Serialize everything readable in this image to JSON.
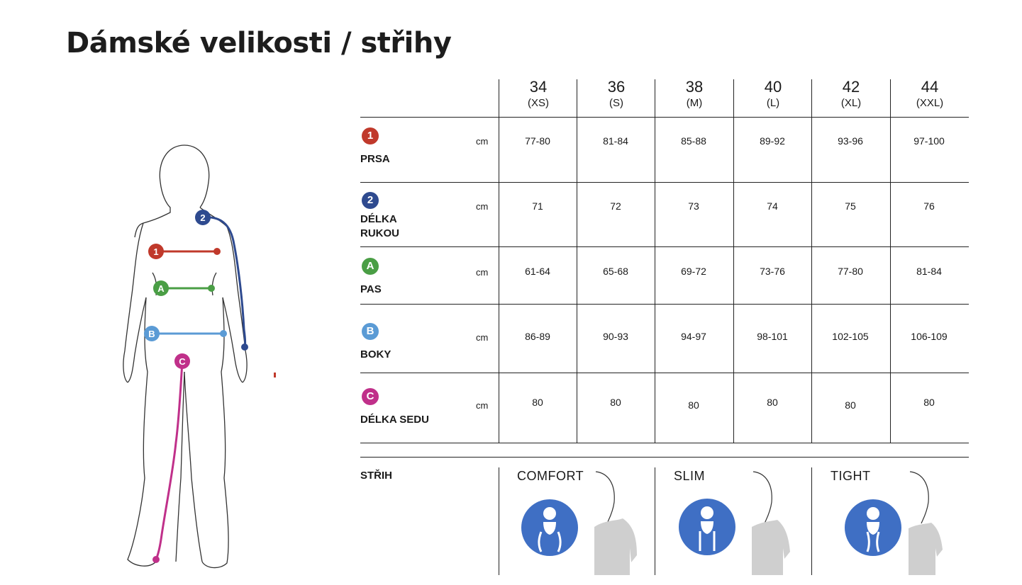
{
  "title": "Dámské velikosti / střihy",
  "sizes": [
    {
      "num": "34",
      "code": "(XS)"
    },
    {
      "num": "36",
      "code": "(S)"
    },
    {
      "num": "38",
      "code": "(M)"
    },
    {
      "num": "40",
      "code": "(L)"
    },
    {
      "num": "42",
      "code": "(XL)"
    },
    {
      "num": "44",
      "code": "(XXL)"
    }
  ],
  "rows": [
    {
      "badge": "1",
      "color": "#c0392b",
      "label": "PRSA",
      "unit": "cm",
      "values": [
        "77-80",
        "81-84",
        "85-88",
        "89-92",
        "93-96",
        "97-100"
      ]
    },
    {
      "badge": "2",
      "color": "#2e4a8f",
      "label": "DÉLKA\nRUKOU",
      "label_line1": "DÉLKA",
      "label_line2": "RUKOU",
      "unit": "cm",
      "values": [
        "71",
        "72",
        "73",
        "74",
        "75",
        "76"
      ]
    },
    {
      "badge": "A",
      "color": "#4a9e45",
      "label": "PAS",
      "unit": "cm",
      "values": [
        "61-64",
        "65-68",
        "69-72",
        "73-76",
        "77-80",
        "81-84"
      ]
    },
    {
      "badge": "B",
      "color": "#5b9bd5",
      "label": "BOKY",
      "unit": "cm",
      "values": [
        "86-89",
        "90-93",
        "94-97",
        "98-101",
        "102-105",
        "106-109"
      ]
    },
    {
      "badge": "C",
      "color": "#c0308a",
      "label": "DÉLKA SEDU",
      "unit": "cm",
      "values": [
        "80",
        "80",
        "80",
        "80",
        "80",
        "80"
      ]
    }
  ],
  "fit": {
    "heading": "STŘIH",
    "types": [
      "COMFORT",
      "SLIM",
      "TIGHT"
    ],
    "icon_color": "#3f6fc4"
  },
  "figure_markers": [
    "1",
    "2",
    "A",
    "B",
    "C"
  ]
}
